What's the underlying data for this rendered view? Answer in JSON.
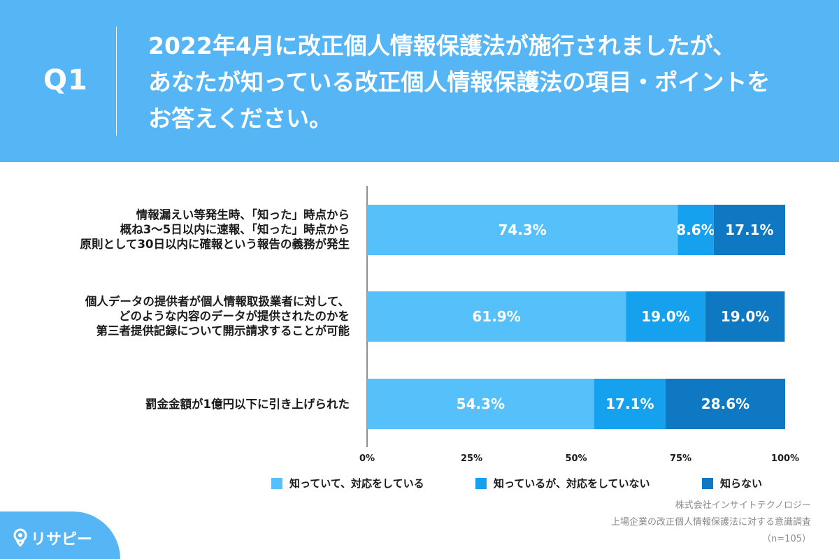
{
  "header": {
    "q_label": "Q1",
    "question_lines": [
      "2022年4月に改正個人情報保護法が施行されましたが、",
      "あなたが知っている改正個人情報保護法の項目・ポイントを",
      "お答えください。"
    ]
  },
  "chart_data": {
    "type": "bar",
    "orientation": "horizontal",
    "stacked": true,
    "categories": [
      [
        "情報漏えい等発生時、「知った」時点から",
        "概ね3〜5日以内に速報、「知った」時点から",
        "原則として30日以内に確報という報告の義務が発生"
      ],
      [
        "個人データの提供者が個人情報取扱業者に対して、",
        "どのような内容のデータが提供されたのかを",
        "第三者提供記録について開示請求することが可能"
      ],
      [
        "罰金金額が1億円以下に引き上げられた"
      ]
    ],
    "series": [
      {
        "name": "知っていて、対応をしている",
        "values": [
          74.3,
          61.9,
          54.3
        ],
        "labels": [
          "74.3%",
          "61.9%",
          "54.3%"
        ],
        "color": "#56c0fb"
      },
      {
        "name": "知っているが、対応をしていない",
        "values": [
          8.6,
          19.0,
          17.1
        ],
        "labels": [
          "8.6%",
          "19.0%",
          "17.1%"
        ],
        "color": "#16a1ef"
      },
      {
        "name": "知らない",
        "values": [
          17.1,
          19.0,
          28.6
        ],
        "labels": [
          "17.1%",
          "19.0%",
          "28.6%"
        ],
        "color": "#0e79c2"
      }
    ],
    "x_ticks": [
      "0%",
      "25%",
      "50%",
      "75%",
      "100%"
    ],
    "xlim": [
      0,
      100
    ],
    "legend_position": "bottom"
  },
  "source": {
    "line1": "株式会社インサイトテクノロジー",
    "line2": "上場企業の改正個人情報保護法に対する意識調査",
    "line3": "（n=105）"
  },
  "logo": {
    "text": "リサピー"
  }
}
